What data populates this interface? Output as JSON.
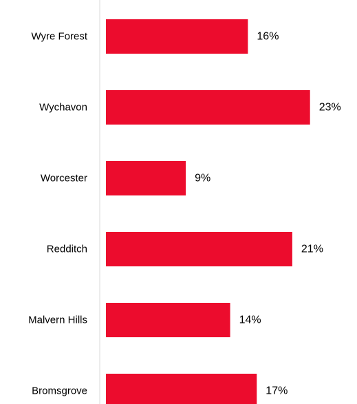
{
  "chart_data": {
    "type": "bar",
    "orientation": "horizontal",
    "categories": [
      "Wyre Forest",
      "Wychavon",
      "Worcester",
      "Redditch",
      "Malvern Hills",
      "Bromsgrove"
    ],
    "values": [
      16,
      23,
      9,
      21,
      14,
      17
    ],
    "value_labels": [
      "16%",
      "23%",
      "9%",
      "21%",
      "14%",
      "17%"
    ],
    "unit": "%",
    "title": "",
    "xlabel": "",
    "ylabel": "",
    "xlim": [
      0,
      23
    ],
    "grid": false,
    "legend": "none",
    "bar_color": "#EC0C2D",
    "axis_color": "#D9D9D9"
  }
}
